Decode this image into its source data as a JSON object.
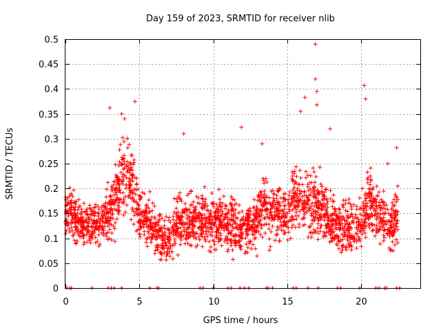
{
  "chart_data": {
    "type": "scatter",
    "title": "Day 159 of 2023, SRMTID for receiver nlib",
    "xlabel": "GPS time / hours",
    "ylabel": "SRMTID / TECUs",
    "xlim": [
      0,
      24
    ],
    "ylim": [
      0,
      0.5
    ],
    "xticks": [
      0,
      5,
      10,
      15,
      20
    ],
    "xtick_labels": [
      "0",
      "5",
      "10",
      "15",
      "20"
    ],
    "yticks": [
      0,
      0.05,
      0.1,
      0.15,
      0.2,
      0.25,
      0.3,
      0.35,
      0.4,
      0.45,
      0.5
    ],
    "ytick_labels": [
      "0",
      "0.05",
      "0.1",
      "0.15",
      "0.2",
      "0.25",
      "0.3",
      "0.35",
      "0.4",
      "0.45",
      "0.5"
    ],
    "grid": true,
    "marker": "+",
    "series": [
      {
        "name": "SRMTID",
        "color": "#ff0000",
        "hour_range": [
          0,
          22.5
        ],
        "approximate_points": 2400,
        "profile_hours": [
          0,
          0.5,
          1,
          2,
          3,
          3.5,
          4,
          4.5,
          5,
          5.5,
          6,
          6.5,
          7,
          7.5,
          8,
          9,
          10,
          11,
          12,
          12.5,
          13,
          13.5,
          14,
          15,
          15.5,
          16,
          16.5,
          17,
          17.5,
          18,
          18.5,
          19,
          20,
          20.5,
          21,
          21.5,
          22,
          22.5
        ],
        "profile_typical": [
          0.14,
          0.15,
          0.13,
          0.13,
          0.15,
          0.19,
          0.24,
          0.21,
          0.15,
          0.14,
          0.12,
          0.1,
          0.1,
          0.12,
          0.14,
          0.14,
          0.13,
          0.13,
          0.11,
          0.12,
          0.14,
          0.17,
          0.15,
          0.15,
          0.18,
          0.17,
          0.17,
          0.17,
          0.16,
          0.13,
          0.12,
          0.12,
          0.13,
          0.17,
          0.16,
          0.14,
          0.12,
          0.15
        ],
        "profile_spread": [
          0.04,
          0.05,
          0.04,
          0.04,
          0.05,
          0.07,
          0.08,
          0.07,
          0.05,
          0.05,
          0.04,
          0.04,
          0.04,
          0.05,
          0.05,
          0.05,
          0.05,
          0.05,
          0.05,
          0.05,
          0.05,
          0.06,
          0.05,
          0.05,
          0.06,
          0.06,
          0.06,
          0.07,
          0.06,
          0.05,
          0.05,
          0.05,
          0.05,
          0.07,
          0.06,
          0.05,
          0.05,
          0.05
        ],
        "peaks": [
          {
            "x": 3.0,
            "y": 0.362
          },
          {
            "x": 3.8,
            "y": 0.35
          },
          {
            "x": 4.0,
            "y": 0.34
          },
          {
            "x": 4.7,
            "y": 0.375
          },
          {
            "x": 8.0,
            "y": 0.31
          },
          {
            "x": 11.9,
            "y": 0.323
          },
          {
            "x": 13.3,
            "y": 0.29
          },
          {
            "x": 15.9,
            "y": 0.355
          },
          {
            "x": 16.2,
            "y": 0.383
          },
          {
            "x": 16.9,
            "y": 0.49
          },
          {
            "x": 16.9,
            "y": 0.42
          },
          {
            "x": 17.0,
            "y": 0.395
          },
          {
            "x": 17.0,
            "y": 0.368
          },
          {
            "x": 17.9,
            "y": 0.32
          },
          {
            "x": 20.2,
            "y": 0.407
          },
          {
            "x": 20.3,
            "y": 0.38
          },
          {
            "x": 21.8,
            "y": 0.25
          },
          {
            "x": 22.4,
            "y": 0.282
          }
        ],
        "zero_points_x": [
          0.1,
          0.3,
          0.4,
          1.8,
          2.9,
          3.1,
          3.3,
          3.8,
          5.7,
          6.2,
          6.3,
          9.1,
          9.3,
          10.0,
          11.0,
          11.2,
          11.8,
          12.1,
          12.4,
          13.6,
          13.7,
          14.0,
          15.4,
          15.6,
          16.4,
          17.1,
          18.4,
          18.6,
          19.9,
          21.0,
          21.2,
          21.6,
          21.7,
          22.4,
          22.6
        ]
      }
    ]
  }
}
